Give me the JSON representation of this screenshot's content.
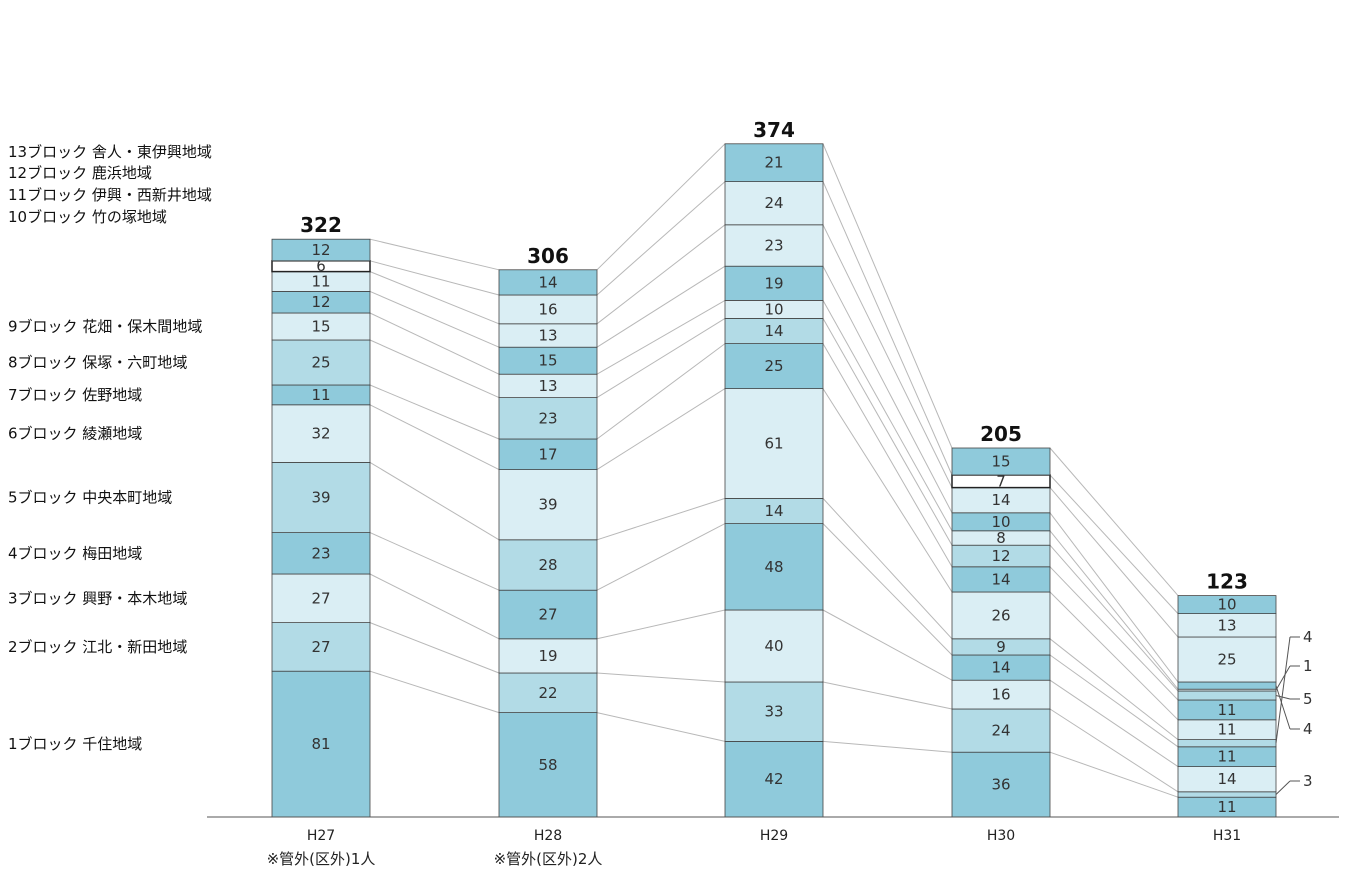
{
  "chart_data": {
    "type": "bar",
    "stacked": true,
    "categories": [
      "H27",
      "H28",
      "H29",
      "H30",
      "H31"
    ],
    "category_notes": [
      "※管外(区外)1人",
      "※管外(区外)2人",
      "",
      "",
      ""
    ],
    "totals": [
      322,
      306,
      374,
      205,
      123
    ],
    "series": [
      {
        "name": "1ブロック 千住地域",
        "values": [
          81,
          58,
          42,
          36,
          11
        ]
      },
      {
        "name": "2ブロック 江北・新田地域",
        "values": [
          27,
          22,
          33,
          24,
          3
        ]
      },
      {
        "name": "3ブロック 興野・本木地域",
        "values": [
          27,
          19,
          40,
          16,
          14
        ]
      },
      {
        "name": "4ブロック 梅田地域",
        "values": [
          23,
          27,
          48,
          14,
          11
        ]
      },
      {
        "name": "5ブロック 中央本町地域",
        "values": [
          39,
          28,
          14,
          9,
          4
        ]
      },
      {
        "name": "6ブロック 綾瀬地域",
        "values": [
          32,
          39,
          61,
          26,
          11
        ]
      },
      {
        "name": "7ブロック 佐野地域",
        "values": [
          11,
          17,
          25,
          14,
          11
        ]
      },
      {
        "name": "8ブロック 保塚・六町地域",
        "values": [
          25,
          23,
          14,
          12,
          5
        ]
      },
      {
        "name": "9ブロック 花畑・保木間地域",
        "values": [
          15,
          13,
          10,
          8,
          1
        ]
      },
      {
        "name": "10ブロック 竹の塚地域",
        "values": [
          12,
          15,
          19,
          10,
          4
        ]
      },
      {
        "name": "11ブロック 伊興・西新井地域",
        "values": [
          11,
          13,
          23,
          14,
          25
        ]
      },
      {
        "name": "12ブロック 鹿浜地域",
        "values": [
          6,
          16,
          24,
          7,
          13
        ]
      },
      {
        "name": "13ブロック 舎人・東伊興地域",
        "values": [
          12,
          14,
          21,
          15,
          10
        ]
      }
    ],
    "annotated_values": [
      "4",
      "1",
      "5",
      "4",
      "3"
    ],
    "colors": {
      "dark": "#8fcadb",
      "medium": "#b2dbe6",
      "light": "#daeef4",
      "white": "#ffffff",
      "outline": "#444444",
      "connector": "#b8b8b8"
    }
  }
}
